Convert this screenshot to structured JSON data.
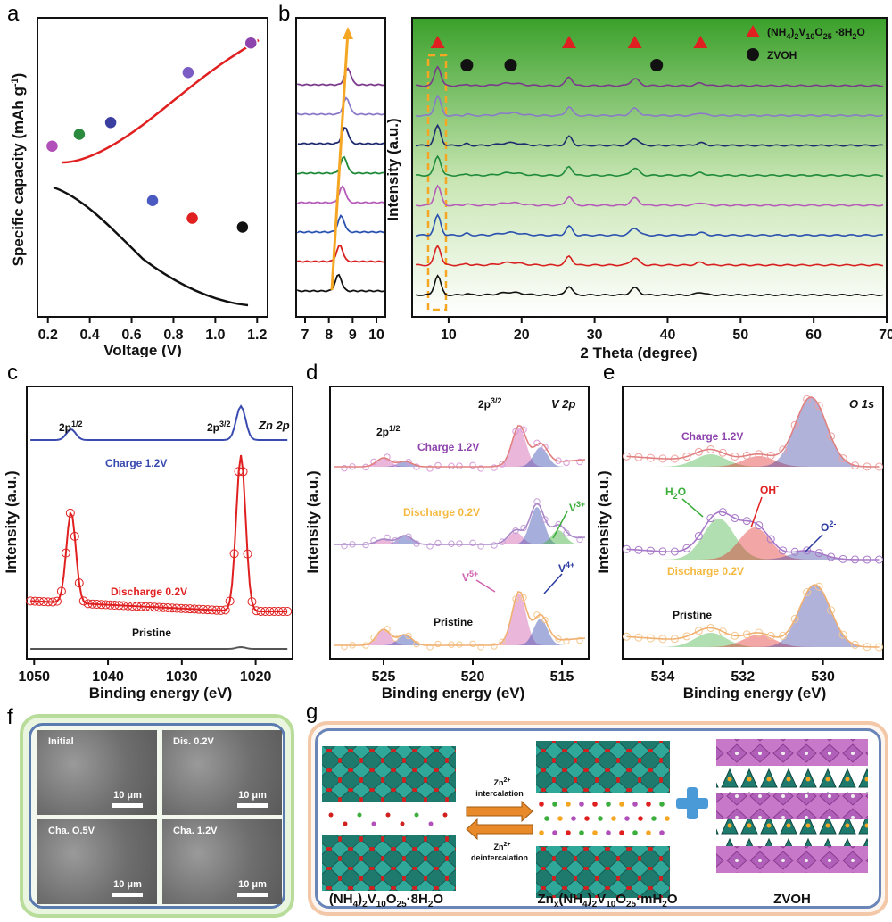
{
  "panels": {
    "a": "a",
    "b": "b",
    "c": "c",
    "d": "d",
    "e": "e",
    "f": "f",
    "g": "g"
  },
  "panel_a": {
    "ylabel": "Specific capacity (mAh g",
    "ylabel_sup": "-1",
    "ylabel_close": ")",
    "xlabel": "Voltage (V)",
    "xticks": [
      "0.2",
      "0.4",
      "0.6",
      "0.8",
      "1.0",
      "1.2"
    ]
  },
  "panel_b": {
    "ylabel": "Intensity (a.u.)",
    "xlabel": "2 Theta (degree)",
    "xticks_left": [
      "7",
      "8",
      "9",
      "10"
    ],
    "xticks_right": [
      "10",
      "20",
      "30",
      "40",
      "50",
      "60",
      "70"
    ],
    "legend_phase_a": "(NH",
    "legend_phase_a_sub1": "4",
    "legend_phase_a_mid": ")",
    "legend_phase_a_sub2": "2",
    "legend_phase_a_v": "V",
    "legend_phase_a_sub3": "10",
    "legend_phase_a_o": "O",
    "legend_phase_a_sub4": "25",
    "legend_phase_a_tail": " ·8H",
    "legend_phase_a_sub5": "2",
    "legend_phase_a_end": "O",
    "legend_phase_b": "ZVOH"
  },
  "panel_c": {
    "ylabel": "Intensity (a.u.)",
    "xlabel": "Binding energy (eV)",
    "title": "Zn 2p",
    "peak1": "2p",
    "peak1_sup": "1/2",
    "peak2": "2p",
    "peak2_sup": "3/2",
    "curve_top": "Charge 1.2V",
    "curve_mid": "Discharge 0.2V",
    "curve_bot": "Pristine",
    "xticks": [
      "1050",
      "1040",
      "1030",
      "1020"
    ]
  },
  "panel_d": {
    "ylabel": "Intensity (a.u.)",
    "xlabel": "Binding energy (eV)",
    "title": "V 2p",
    "peak1": "2p",
    "peak1_sup": "1/2",
    "peak2": "2p",
    "peak2_sup": "3/2",
    "curve_top": "Charge 1.2V",
    "curve_mid": "Discharge 0.2V",
    "curve_bot": "Pristine",
    "v5": "V",
    "v5_sup": "5+",
    "v4": "V",
    "v4_sup": "4+",
    "v3": "V",
    "v3_sup": "3+",
    "xticks": [
      "525",
      "520",
      "515"
    ]
  },
  "panel_e": {
    "ylabel": "Intensity (a.u.)",
    "xlabel": "Binding energy (eV)",
    "title": "O 1s",
    "curve_top": "Charge 1.2V",
    "curve_mid": "Discharge 0.2V",
    "curve_bot": "Pristine",
    "h2o": "H",
    "h2o_sub": "2",
    "h2o_end": "O",
    "oh": "OH",
    "oh_sup": "-",
    "o2": "O",
    "o2_sup": "2-",
    "xticks": [
      "534",
      "532",
      "530"
    ]
  },
  "panel_f": {
    "tiles": [
      {
        "label": "Initial",
        "scale": "10 μm"
      },
      {
        "label": "Dis. 0.2V",
        "scale": "10 μm"
      },
      {
        "label": "Cha. O.5V",
        "scale": "10 μm"
      },
      {
        "label": "Cha. 1.2V",
        "scale": "10 μm"
      }
    ]
  },
  "panel_g": {
    "left_label": "(NH",
    "left_sub1": "4",
    "left_mid": ")",
    "left_sub2": "2",
    "left_v": "V",
    "left_sub3": "10",
    "left_o": "O",
    "left_sub4": "25",
    "left_tail": "·8H",
    "left_sub5": "2",
    "left_end": "O",
    "mid_label": "Zn",
    "mid_sub1": "x",
    "mid_a": "(NH",
    "mid_sub2": "4",
    "mid_b": ")",
    "mid_sub3": "2",
    "mid_c": "V",
    "mid_sub4": "10",
    "mid_d": "O",
    "mid_sub5": "25",
    "mid_e": "·mH",
    "mid_sub6": "2",
    "mid_f": "O",
    "right_label": "ZVOH",
    "arrow_top_ion": "Zn",
    "arrow_top_ion_sup": "2+",
    "arrow_top": "intercalation",
    "arrow_bot_ion": "Zn",
    "arrow_bot_ion_sup": "2+",
    "arrow_bot": "deintercalation"
  },
  "chart_data": [
    {
      "type": "line",
      "panel": "a",
      "xlabel": "Voltage (V)",
      "ylabel": "Specific capacity (mAh g-1)",
      "xlim": [
        0.15,
        1.25
      ],
      "series": [
        {
          "name": "charge",
          "points": [
            [
              0.25,
              0.3
            ],
            [
              0.35,
              0.3
            ],
            [
              0.5,
              0.38
            ],
            [
              0.7,
              0.55
            ],
            [
              0.87,
              0.72
            ],
            [
              1.17,
              0.92
            ]
          ]
        },
        {
          "name": "discharge",
          "points": [
            [
              0.22,
              0.22
            ],
            [
              0.4,
              0.15
            ],
            [
              0.55,
              0.02
            ],
            [
              0.7,
              -0.15
            ],
            [
              0.89,
              -0.27
            ],
            [
              1.13,
              -0.33
            ]
          ]
        }
      ],
      "marker_colors": [
        "#8e44ad",
        "#7b5cc4",
        "#3a3fa0",
        "#2a8a3e",
        "#8e44ad",
        "#4a5ac0",
        "#e02020",
        "#111111"
      ]
    },
    {
      "type": "line",
      "panel": "b",
      "xlabel": "2 Theta (degree)",
      "xlim": [
        5,
        70
      ],
      "series": [
        {
          "name": "pattern-1",
          "color": "#7b3a8c"
        },
        {
          "name": "pattern-2",
          "color": "#8a7ac8"
        },
        {
          "name": "pattern-3",
          "color": "#1f2a6e"
        },
        {
          "name": "pattern-4",
          "color": "#1e8a3a"
        },
        {
          "name": "pattern-5",
          "color": "#b65cb8"
        },
        {
          "name": "pattern-6",
          "color": "#2a50b0"
        },
        {
          "name": "pattern-7",
          "color": "#d82020"
        },
        {
          "name": "pattern-8",
          "color": "#111111"
        }
      ],
      "peak_markers_triangle": [
        8.5,
        26.5,
        35.5,
        44.5
      ],
      "peak_markers_circle": [
        12.5,
        18.5,
        38.5
      ]
    }
  ],
  "colors": {
    "red": "#e02020",
    "blue": "#3a4bb0",
    "orange": "#f5a623",
    "green": "#3cae3c",
    "purple": "#8e44ad"
  }
}
